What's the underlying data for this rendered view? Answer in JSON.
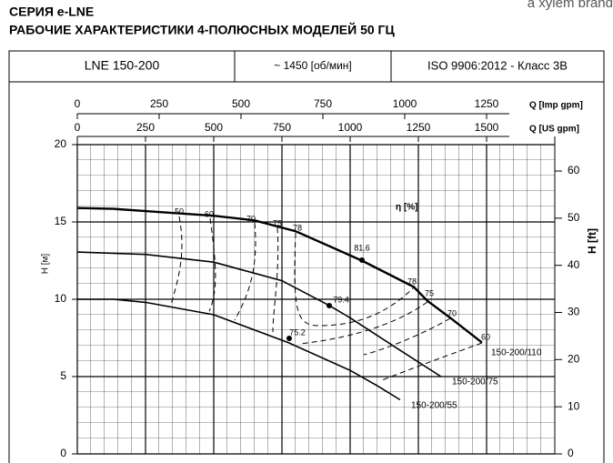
{
  "brand": "a xylem brand",
  "chart_data": {
    "type": "line",
    "title": "СЕРИЯ e-LNE",
    "subtitle": "РАБОЧИЕ ХАРАКТЕРИСТИКИ 4-ПОЛЮСНЫХ МОДЕЛЕЙ 50 ГЦ",
    "header": [
      "LNE 150-200",
      "~ 1450 [об/мин]",
      "ISO 9906:2012 - Класс 3B"
    ],
    "xlabel": "Q [US gpm]",
    "x2label": "Q [Imp gpm]",
    "ylabel": "H [м]",
    "y2label": "H [ft]",
    "xlim": [
      0,
      1750
    ],
    "xticks": [
      0,
      250,
      500,
      750,
      1000,
      1250,
      1500
    ],
    "x2lim": [
      0,
      1458.3
    ],
    "x2ticks": [
      0,
      250,
      500,
      750,
      1000,
      1250
    ],
    "ylim": [
      0,
      20
    ],
    "yticks": [
      0,
      5,
      10,
      15,
      20
    ],
    "y2lim": [
      0,
      65.6
    ],
    "y2ticks": [
      0,
      10,
      20,
      30,
      40,
      50,
      60
    ],
    "grid": true,
    "series": [
      {
        "name": "150-200/110",
        "color": "#000000",
        "x": [
          0,
          133,
          250,
          500,
          650,
          800,
          1043,
          1233,
          1283,
          1367,
          1483
        ],
        "values": [
          15.9,
          15.85,
          15.7,
          15.4,
          15.1,
          14.4,
          12.5,
          10.8,
          9.9,
          8.8,
          7.2
        ]
      },
      {
        "name": "150-200/75",
        "color": "#000000",
        "x": [
          0,
          250,
          500,
          750,
          923,
          1000,
          1183,
          1333
        ],
        "values": [
          13.05,
          12.9,
          12.4,
          11.2,
          9.6,
          8.8,
          6.7,
          5.0
        ]
      },
      {
        "name": "150-200/55",
        "color": "#000000",
        "x": [
          0,
          133,
          250,
          500,
          773,
          1000,
          1100,
          1183
        ],
        "values": [
          10,
          10,
          9.8,
          9.0,
          7.2,
          5.4,
          4.4,
          3.5
        ]
      }
    ],
    "efficiency_label": "η [%]",
    "efficiency_values": [
      50,
      60,
      70,
      75,
      78,
      81.6,
      79.4,
      75.2,
      78,
      75,
      70,
      60
    ]
  }
}
